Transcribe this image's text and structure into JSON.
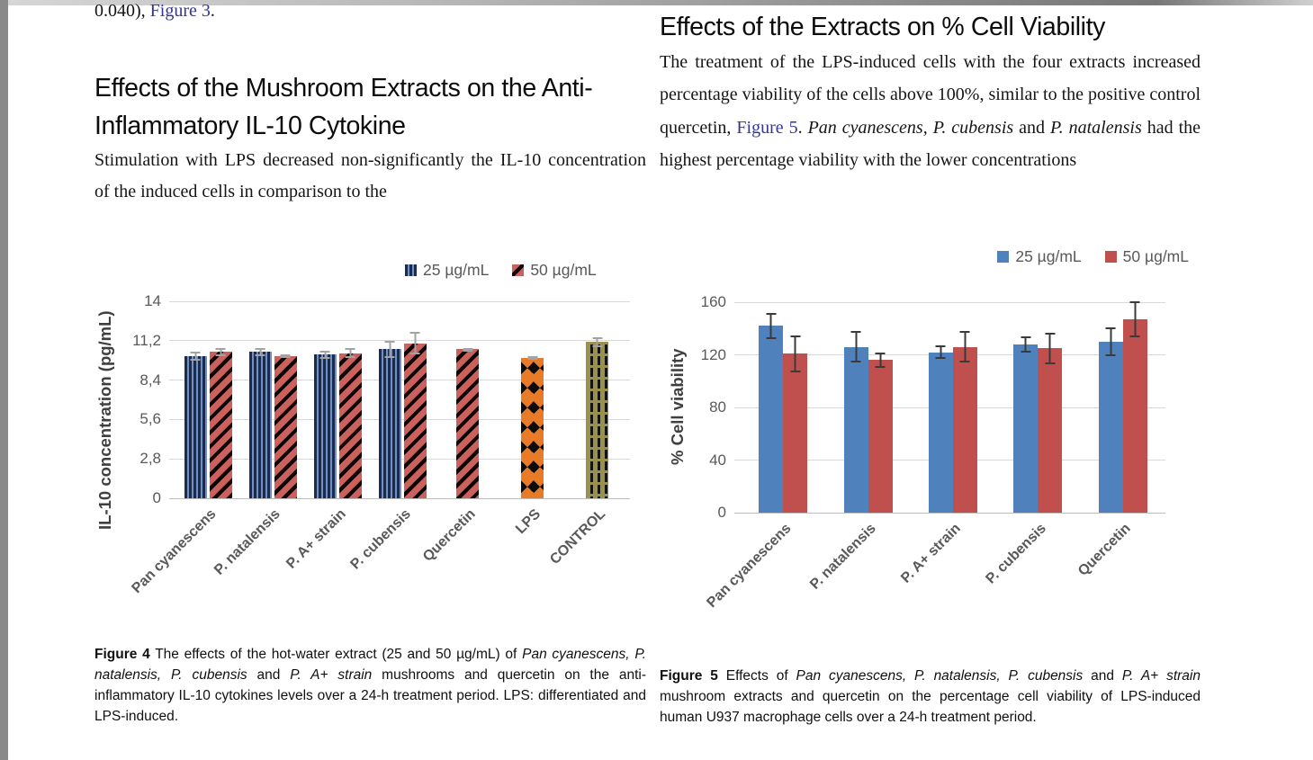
{
  "page": {
    "left_column": {
      "intro": {
        "pre": "0.040), ",
        "link": "Figure 3",
        "post": "."
      },
      "heading": "Effects of the Mushroom Extracts on the Anti-Inflammatory IL-10 Cytokine",
      "body": "Stimulation with LPS decreased non-significantly the IL-10 concentration of the induced cells in comparison to the"
    },
    "right_column": {
      "heading": "Effects of the Extracts on % Cell Viability",
      "body": {
        "s1": "The treatment of the LPS-induced cells with the four extracts increased percentage viability of the cells above 100%, similar to the positive control quercetin, ",
        "link": "Figure 5",
        "s2": ". ",
        "i1": "Pan cyanescens, P. cubensis",
        "s3": " and ",
        "i2": "P. natalensis",
        "s4": " had the highest percentage viability with the lower concentrations"
      }
    },
    "captions": {
      "fig4": {
        "label": "Figure 4",
        "s1": " The effects of the hot-water extract (25 and 50 µg/mL) of ",
        "i1": "Pan cyanescens, P. natalensis, P. cubensis",
        "s2": " and ",
        "i2": "P. A+ strain",
        "s3": " mushrooms and quercetin on the anti-inflammatory IL-10 cytokines levels over a 24-h treatment period. LPS: differentiated and LPS-induced."
      },
      "fig5": {
        "label": "Figure 5",
        "s1": " Effects of ",
        "i1": "Pan cyanescens, P. natalensis, P. cubensis",
        "s2": " and ",
        "i2": "P. A+ strain",
        "s3": " mushroom extracts and quercetin on the percentage cell viability of LPS-induced human U937 macrophage cells over a 24-h treatment period."
      }
    }
  },
  "colors": {
    "link": "#31369b",
    "grid": "#d9d9d9",
    "axis_text": "#595959",
    "fig5_blue": "#4f81bd",
    "fig5_red": "#c0504d",
    "fig4_blue_base": "#1a2b4e",
    "fig4_blue_stripe": "#7291c1",
    "fig4_red_base": "#ca615c",
    "fig4_lps_orange": "#e87b28",
    "fig4_control_olive": "#9a914f"
  },
  "chart_data": [
    {
      "type": "bar",
      "figure": "Figure 4",
      "ylabel": "IL-10 concentration (pg/mL)",
      "ylim": [
        0,
        14
      ],
      "yticks": [
        0,
        2.8,
        5.6,
        8.4,
        11.2,
        14
      ],
      "ytick_labels": [
        "0",
        "2,8",
        "5,6",
        "8,4",
        "11,2",
        "14"
      ],
      "grid": true,
      "legend_position": "top-center-right",
      "categories": [
        "Pan cyanescens",
        "P. natalensis",
        "P. A+ strain",
        "P. cubensis",
        "Quercetin",
        "LPS",
        "CONTROL"
      ],
      "series": [
        {
          "name": "25 µg/mL",
          "style": "s-blue-striped",
          "values": [
            10.1,
            10.4,
            10.2,
            10.6,
            null,
            null,
            null
          ],
          "errors": [
            0.3,
            0.3,
            0.3,
            0.6,
            null,
            null,
            null
          ]
        },
        {
          "name": "50 µg/mL",
          "style": "s-red-striped",
          "values": [
            10.4,
            10.1,
            10.3,
            11.0,
            10.6,
            null,
            null
          ],
          "errors": [
            0.3,
            0.15,
            0.35,
            0.8,
            0.08,
            null,
            null
          ]
        },
        {
          "name": "LPS",
          "style": "s-orange-diamond",
          "values": [
            null,
            null,
            null,
            null,
            null,
            10.0,
            null
          ],
          "errors": [
            null,
            null,
            null,
            null,
            null,
            0.08,
            null
          ]
        },
        {
          "name": "CONTROL",
          "style": "s-olive-dashed",
          "values": [
            null,
            null,
            null,
            null,
            null,
            null,
            11.1
          ],
          "errors": [
            null,
            null,
            null,
            null,
            null,
            null,
            0.35
          ]
        }
      ]
    },
    {
      "type": "bar",
      "figure": "Figure 5",
      "ylabel": "% Cell viability",
      "ylim": [
        0,
        160
      ],
      "yticks": [
        0,
        40,
        80,
        120,
        160
      ],
      "ytick_labels": [
        "0",
        "40",
        "80",
        "120",
        "160"
      ],
      "grid": true,
      "legend_position": "top-right",
      "categories": [
        "Pan cyanescens",
        "P. natalensis",
        "P. A+ strain",
        "P. cubensis",
        "Quercetin"
      ],
      "series": [
        {
          "name": "25 µg/mL",
          "style": "s-blue-solid",
          "values": [
            142,
            126,
            122,
            128,
            130
          ],
          "errors": [
            10,
            12,
            5,
            6,
            11
          ]
        },
        {
          "name": "50 µg/mL",
          "style": "s-red-solid",
          "values": [
            121,
            116,
            126,
            125,
            147
          ],
          "errors": [
            14,
            6,
            12,
            12,
            14
          ]
        }
      ]
    }
  ]
}
